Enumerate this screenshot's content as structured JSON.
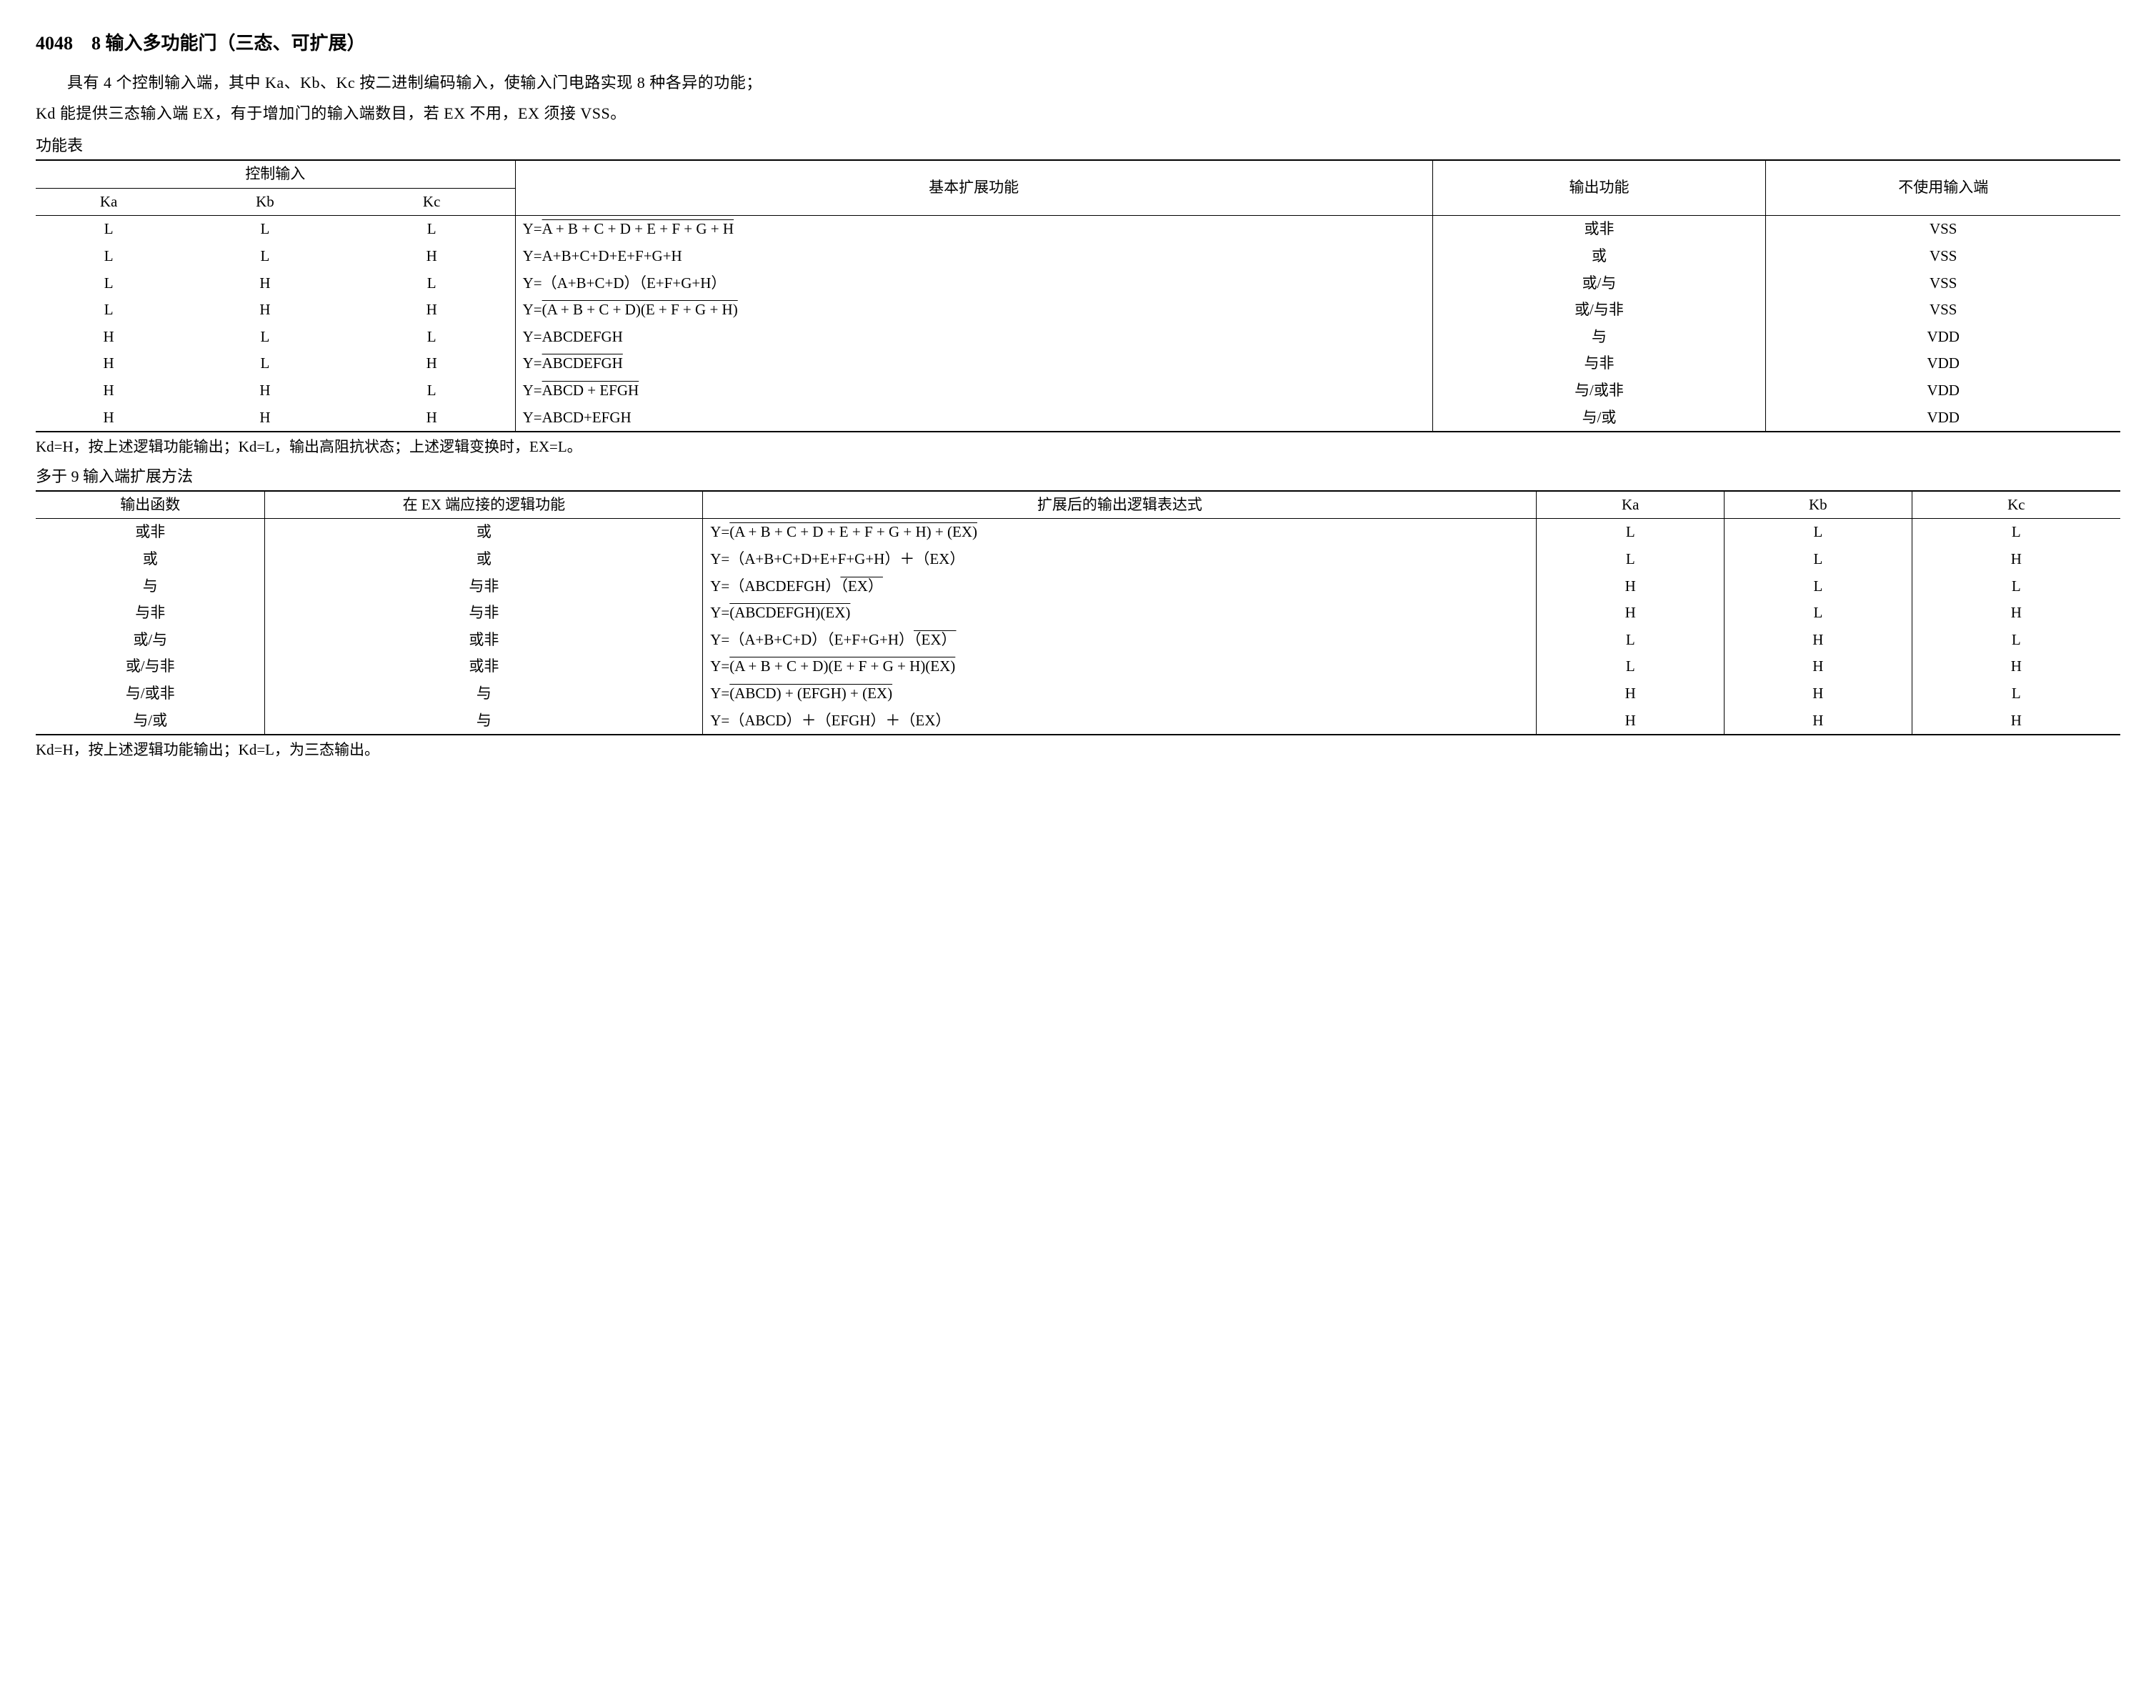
{
  "title": "4048　8 输入多功能门（三态、可扩展）",
  "intro1": "具有 4 个控制输入端，其中 Ka、Kb、Kc 按二进制编码输入，使输入门电路实现 8 种各异的功能；",
  "intro2": "Kd 能提供三态输入端 EX，有于增加门的输入端数目，若 EX 不用，EX 须接 VSS。",
  "table1_label": "功能表",
  "table1": {
    "header_group": "控制输入",
    "header_basic": "基本扩展功能",
    "header_output": "输出功能",
    "header_unused": "不使用输入端",
    "header_ka": "Ka",
    "header_kb": "Kb",
    "header_kc": "Kc",
    "rows": [
      {
        "ka": "L",
        "kb": "L",
        "kc": "L",
        "out": "或非",
        "unused": "VSS"
      },
      {
        "ka": "L",
        "kb": "L",
        "kc": "H",
        "out": "或",
        "unused": "VSS"
      },
      {
        "ka": "L",
        "kb": "H",
        "kc": "L",
        "out": "或/与",
        "unused": "VSS"
      },
      {
        "ka": "L",
        "kb": "H",
        "kc": "H",
        "out": "或/与非",
        "unused": "VSS"
      },
      {
        "ka": "H",
        "kb": "L",
        "kc": "L",
        "out": "与",
        "unused": "VDD"
      },
      {
        "ka": "H",
        "kb": "L",
        "kc": "H",
        "out": "与非",
        "unused": "VDD"
      },
      {
        "ka": "H",
        "kb": "H",
        "kc": "L",
        "out": "与/或非",
        "unused": "VDD"
      },
      {
        "ka": "H",
        "kb": "H",
        "kc": "H",
        "out": "与/或",
        "unused": "VDD"
      }
    ],
    "expr_prefix": "Y=",
    "expr0_over": "A + B + C + D + E + F + G + H",
    "expr1": "A+B+C+D+E+F+G+H",
    "expr2": "（A+B+C+D）（E+F+G+H）",
    "expr3_over": "(A + B + C + D)(E + F + G + H)",
    "expr4": "ABCDEFGH",
    "expr5_over": "ABCDEFGH",
    "expr6_over": "ABCD + EFGH",
    "expr7": "ABCD+EFGH"
  },
  "note1": "Kd=H，按上述逻辑功能输出；Kd=L，输出高阻抗状态；上述逻辑变换时，EX=L。",
  "table2_label": "多于 9 输入端扩展方法",
  "table2": {
    "header_fn": "输出函数",
    "header_ex": "在 EX 端应接的逻辑功能",
    "header_expr": "扩展后的输出逻辑表达式",
    "header_ka": "Ka",
    "header_kb": "Kb",
    "header_kc": "Kc",
    "rows": [
      {
        "fn": "或非",
        "ex": "或",
        "ka": "L",
        "kb": "L",
        "kc": "L"
      },
      {
        "fn": "或",
        "ex": "或",
        "ka": "L",
        "kb": "L",
        "kc": "H"
      },
      {
        "fn": "与",
        "ex": "与非",
        "ka": "H",
        "kb": "L",
        "kc": "L"
      },
      {
        "fn": "与非",
        "ex": "与非",
        "ka": "H",
        "kb": "L",
        "kc": "H"
      },
      {
        "fn": "或/与",
        "ex": "或非",
        "ka": "L",
        "kb": "H",
        "kc": "L"
      },
      {
        "fn": "或/与非",
        "ex": "或非",
        "ka": "L",
        "kb": "H",
        "kc": "H"
      },
      {
        "fn": "与/或非",
        "ex": "与",
        "ka": "H",
        "kb": "H",
        "kc": "L"
      },
      {
        "fn": "与/或",
        "ex": "与",
        "ka": "H",
        "kb": "H",
        "kc": "H"
      }
    ],
    "e0_over": "(A + B + C + D + E + F + G + H) + (EX)",
    "e1": "（A+B+C+D+E+F+G+H）＋（EX）",
    "e2_a": "（ABCDEFGH）",
    "e2_ex_over": "（EX）",
    "e3_over": "(ABCDEFGH)(EX)",
    "e4_a": "（A+B+C+D）（E+F+G+H）",
    "e4_ex_over": "（EX）",
    "e5_over": "(A + B + C + D)(E + F + G + H)(EX)",
    "e6_over": "(ABCD) + (EFGH) + (EX)",
    "e7": "（ABCD）＋（EFGH）＋（EX）"
  },
  "note2": "Kd=H，按上述逻辑功能输出；Kd=L，为三态输出。"
}
